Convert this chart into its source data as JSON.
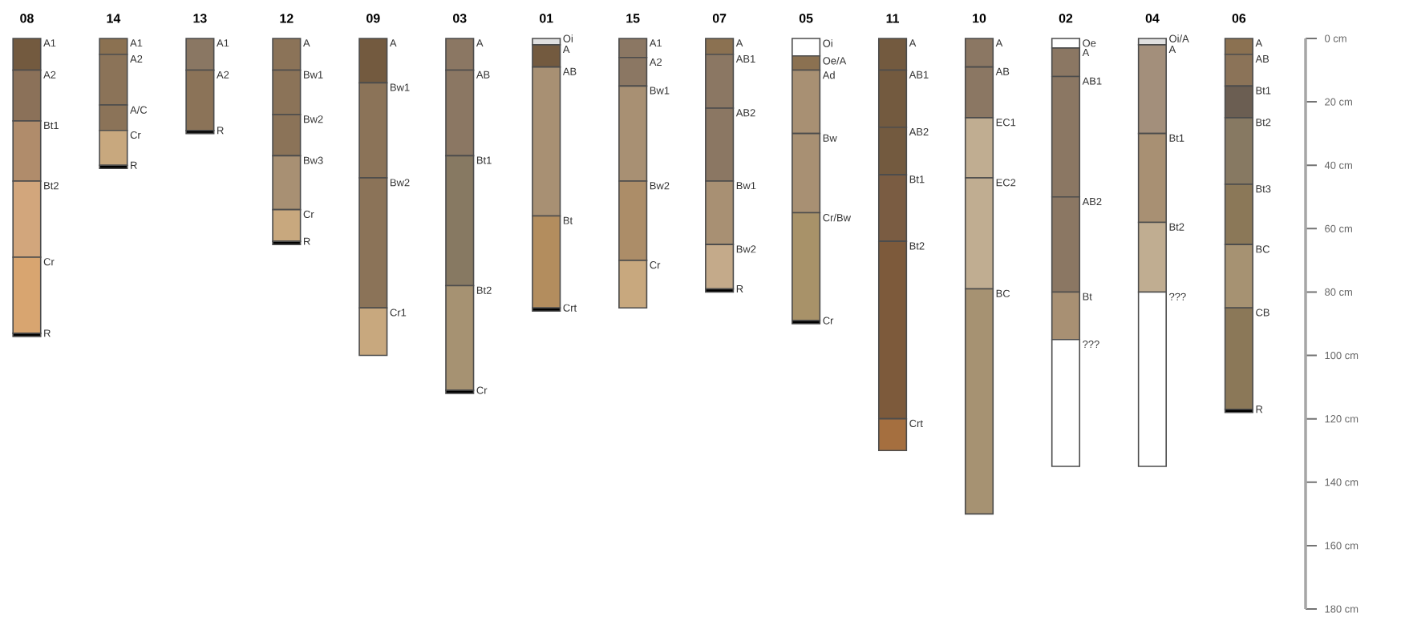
{
  "chart_data": {
    "type": "bar",
    "stacked": true,
    "categories": [
      "08",
      "14",
      "13",
      "12",
      "09",
      "03",
      "01",
      "15",
      "07",
      "05",
      "11",
      "10",
      "02",
      "04",
      "06"
    ],
    "ylim": [
      180,
      0
    ],
    "yticks": [
      {
        "value": 0,
        "label": "0 cm"
      },
      {
        "value": 20,
        "label": "20 cm"
      },
      {
        "value": 40,
        "label": "40 cm"
      },
      {
        "value": 60,
        "label": "60 cm"
      },
      {
        "value": 80,
        "label": "80 cm"
      },
      {
        "value": 100,
        "label": "100 cm"
      },
      {
        "value": 120,
        "label": "120 cm"
      },
      {
        "value": 140,
        "label": "140 cm"
      },
      {
        "value": 160,
        "label": "160 cm"
      },
      {
        "value": 180,
        "label": "180 cm"
      }
    ],
    "series": [
      {
        "values": [
          10,
          5,
          10,
          10,
          14,
          10,
          2,
          6,
          5,
          5.5,
          10,
          9,
          3,
          2,
          5
        ],
        "colors": [
          "#735a3f",
          "#8b7151",
          "#8a7763",
          "#8b7358",
          "#735a3f",
          "#8b7763",
          "#e0e0e0",
          "#8b7763",
          "#8b7151",
          "#ffffff",
          "#735a3f",
          "#8b7763",
          "#ffffff",
          "#e0e0e0",
          "#8b7151"
        ]
      },
      {
        "values": [
          16,
          16,
          19,
          14,
          30,
          27,
          7,
          9,
          17,
          4.5,
          18,
          16,
          9,
          28,
          10
        ],
        "colors": [
          "#8b7159",
          "#8b7358",
          "#8b7358",
          "#8b7358",
          "#8b7358",
          "#8b7763",
          "#735a3f",
          "#8b7763",
          "#8b7763",
          "#8b7151",
          "#735a3f",
          "#8b7763",
          "#8b7763",
          "#a38f7b",
          "#8b7358"
        ]
      },
      {
        "values": [
          19,
          8,
          1,
          13,
          41,
          41,
          47,
          30,
          23,
          20,
          15,
          19,
          38,
          28,
          10
        ],
        "colors": [
          "#b08c6b",
          "#8b7358",
          "#000000",
          "#8b7358",
          "#8b7358",
          "#877962",
          "#a89073",
          "#a89073",
          "#8b7763",
          "#a89073",
          "#735a3f",
          "#c0ad91",
          "#8b7763",
          "#a89073",
          "#6b5e52"
        ]
      },
      {
        "values": [
          24,
          11,
          null,
          17,
          15,
          33,
          29,
          25,
          20,
          25,
          21,
          35,
          30,
          22,
          21
        ],
        "colors": [
          "#d2a67c",
          "#c8a87e",
          null,
          "#a89073",
          "#c8a87e",
          "#a69272",
          "#b38d5e",
          "#ac8d68",
          "#a89073",
          "#a89073",
          "#7a5c42",
          "#c0ad91",
          "#8b7763",
          "#c0ad91",
          "#877962"
        ]
      },
      {
        "values": [
          24,
          1,
          null,
          10,
          null,
          1,
          1,
          15,
          14,
          34,
          56,
          71,
          15,
          55,
          19
        ],
        "colors": [
          "#d8a570",
          "#000000",
          null,
          "#c8a87e",
          null,
          "#000000",
          "#000000",
          "#c8a87e",
          "#c4aa8a",
          "#a89269",
          "#7d5a3b",
          "#a69272",
          "#a89073",
          "#ffffff",
          "#8b7858"
        ]
      },
      {
        "values": [
          1,
          null,
          null,
          1,
          null,
          null,
          null,
          null,
          1,
          1,
          10,
          null,
          40,
          null,
          20
        ],
        "colors": [
          "#000000",
          null,
          null,
          "#000000",
          null,
          null,
          null,
          null,
          "#000000",
          "#000000",
          "#a56f3f",
          null,
          "#ffffff",
          null,
          "#a69272"
        ]
      },
      {
        "values": [
          null,
          null,
          null,
          null,
          null,
          null,
          null,
          null,
          null,
          null,
          null,
          null,
          null,
          null,
          32
        ],
        "colors": [
          null,
          null,
          null,
          null,
          null,
          null,
          null,
          null,
          null,
          null,
          null,
          null,
          null,
          null,
          "#8b7858"
        ]
      },
      {
        "values": [
          null,
          null,
          null,
          null,
          null,
          null,
          null,
          null,
          null,
          null,
          null,
          null,
          null,
          null,
          1
        ],
        "colors": [
          null,
          null,
          null,
          null,
          null,
          null,
          null,
          null,
          null,
          null,
          null,
          null,
          null,
          null,
          "#000000"
        ]
      }
    ],
    "annotations": [
      {
        "text": "A1",
        "x": "08",
        "y": 0
      },
      {
        "text": "A2",
        "x": "08",
        "y": 10
      },
      {
        "text": "Bt1",
        "x": "08",
        "y": 26
      },
      {
        "text": "Bt2",
        "x": "08",
        "y": 45
      },
      {
        "text": "Cr",
        "x": "08",
        "y": 69
      },
      {
        "text": "R",
        "x": "08",
        "y": 93
      },
      {
        "text": "A1",
        "x": "14",
        "y": 0
      },
      {
        "text": "A2",
        "x": "14",
        "y": 5
      },
      {
        "text": "A/C",
        "x": "14",
        "y": 21
      },
      {
        "text": "Cr",
        "x": "14",
        "y": 29
      },
      {
        "text": "R",
        "x": "14",
        "y": 40
      },
      {
        "text": "A1",
        "x": "13",
        "y": 0
      },
      {
        "text": "A2",
        "x": "13",
        "y": 10
      },
      {
        "text": "R",
        "x": "13",
        "y": 29
      },
      {
        "text": "A",
        "x": "12",
        "y": 0
      },
      {
        "text": "Bw1",
        "x": "12",
        "y": 10
      },
      {
        "text": "Bw2",
        "x": "12",
        "y": 24
      },
      {
        "text": "Bw3",
        "x": "12",
        "y": 37
      },
      {
        "text": "Cr",
        "x": "12",
        "y": 54
      },
      {
        "text": "R",
        "x": "12",
        "y": 64
      },
      {
        "text": "A",
        "x": "09",
        "y": 0
      },
      {
        "text": "Bw1",
        "x": "09",
        "y": 14
      },
      {
        "text": "Bw2",
        "x": "09",
        "y": 44
      },
      {
        "text": "Cr1",
        "x": "09",
        "y": 85
      },
      {
        "text": "A",
        "x": "03",
        "y": 0
      },
      {
        "text": "AB",
        "x": "03",
        "y": 10
      },
      {
        "text": "Bt1",
        "x": "03",
        "y": 37
      },
      {
        "text": "Bt2",
        "x": "03",
        "y": 78
      },
      {
        "text": "Cr",
        "x": "03",
        "y": 111
      },
      {
        "text": "Oi",
        "x": "01",
        "y": 0
      },
      {
        "text": "A",
        "x": "01",
        "y": 2
      },
      {
        "text": "AB",
        "x": "01",
        "y": 9
      },
      {
        "text": "Bt",
        "x": "01",
        "y": 56
      },
      {
        "text": "Crt",
        "x": "01",
        "y": 85
      },
      {
        "text": "A1",
        "x": "15",
        "y": 0
      },
      {
        "text": "A2",
        "x": "15",
        "y": 6
      },
      {
        "text": "Bw1",
        "x": "15",
        "y": 15
      },
      {
        "text": "Bw2",
        "x": "15",
        "y": 45
      },
      {
        "text": "Cr",
        "x": "15",
        "y": 70
      },
      {
        "text": "A",
        "x": "07",
        "y": 0
      },
      {
        "text": "AB1",
        "x": "07",
        "y": 5
      },
      {
        "text": "AB2",
        "x": "07",
        "y": 22
      },
      {
        "text": "Bw1",
        "x": "07",
        "y": 45
      },
      {
        "text": "Bw2",
        "x": "07",
        "y": 65
      },
      {
        "text": "R",
        "x": "07",
        "y": 79
      },
      {
        "text": "Oi",
        "x": "05",
        "y": 0
      },
      {
        "text": "Oe/A",
        "x": "05",
        "y": 5.5
      },
      {
        "text": "Ad",
        "x": "05",
        "y": 10
      },
      {
        "text": "Bw",
        "x": "05",
        "y": 30
      },
      {
        "text": "Cr/Bw",
        "x": "05",
        "y": 55
      },
      {
        "text": "Cr",
        "x": "05",
        "y": 89
      },
      {
        "text": "A",
        "x": "11",
        "y": 0
      },
      {
        "text": "AB1",
        "x": "11",
        "y": 10
      },
      {
        "text": "AB2",
        "x": "11",
        "y": 28
      },
      {
        "text": "Bt1",
        "x": "11",
        "y": 43
      },
      {
        "text": "Bt2",
        "x": "11",
        "y": 64
      },
      {
        "text": "Crt",
        "x": "11",
        "y": 120
      },
      {
        "text": "A",
        "x": "10",
        "y": 0
      },
      {
        "text": "AB",
        "x": "10",
        "y": 9
      },
      {
        "text": "EC1",
        "x": "10",
        "y": 25
      },
      {
        "text": "EC2",
        "x": "10",
        "y": 44
      },
      {
        "text": "BC",
        "x": "10",
        "y": 79
      },
      {
        "text": "Oe",
        "x": "02",
        "y": 0
      },
      {
        "text": "A",
        "x": "02",
        "y": 3
      },
      {
        "text": "AB1",
        "x": "02",
        "y": 12
      },
      {
        "text": "AB2",
        "x": "02",
        "y": 50
      },
      {
        "text": "Bt",
        "x": "02",
        "y": 80
      },
      {
        "text": "???",
        "x": "02",
        "y": 95
      },
      {
        "text": "Oi/A",
        "x": "04",
        "y": 0
      },
      {
        "text": "A",
        "x": "04",
        "y": 2
      },
      {
        "text": "Bt1",
        "x": "04",
        "y": 30
      },
      {
        "text": "Bt2",
        "x": "04",
        "y": 58
      },
      {
        "text": "???",
        "x": "04",
        "y": 80
      },
      {
        "text": "A",
        "x": "06",
        "y": 0
      },
      {
        "text": "AB",
        "x": "06",
        "y": 5
      },
      {
        "text": "Bt1",
        "x": "06",
        "y": 15
      },
      {
        "text": "Bt2",
        "x": "06",
        "y": 25
      },
      {
        "text": "Bt3",
        "x": "06",
        "y": 46
      },
      {
        "text": "BC",
        "x": "06",
        "y": 65
      },
      {
        "text": "CB",
        "x": "06",
        "y": 85
      },
      {
        "text": "R",
        "x": "06",
        "y": 117
      }
    ]
  }
}
